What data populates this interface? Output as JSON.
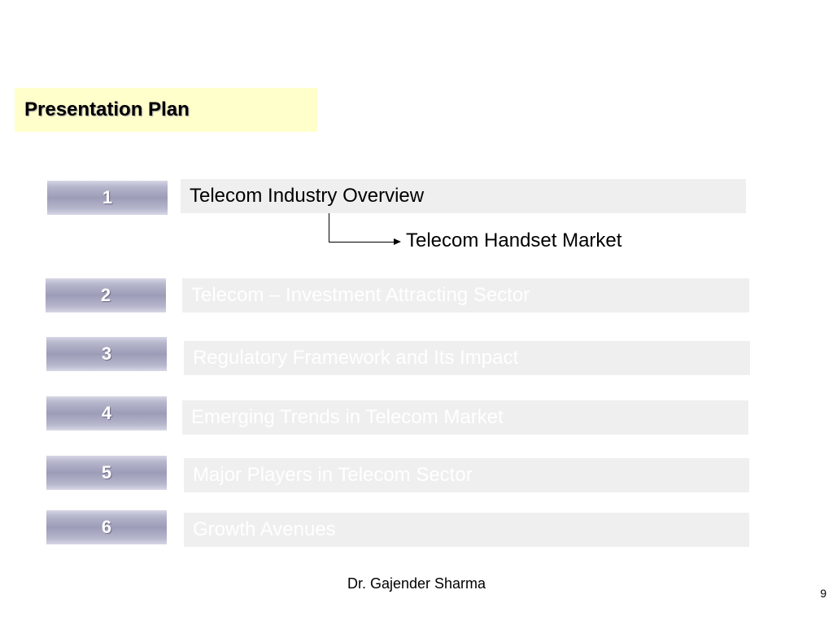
{
  "slide": {
    "title": "Presentation Plan",
    "items": [
      {
        "number": "1",
        "label": "Telecom Industry Overview",
        "active": true
      },
      {
        "number": "2",
        "label": "Telecom – Investment Attracting Sector",
        "active": false
      },
      {
        "number": "3",
        "label": "Regulatory Framework and Its Impact",
        "active": false
      },
      {
        "number": "4",
        "label": "Emerging Trends in Telecom Market",
        "active": false
      },
      {
        "number": "5",
        "label": "Major Players in Telecom Sector",
        "active": false
      },
      {
        "number": "6",
        "label": "Growth Avenues",
        "active": false
      }
    ],
    "subitem": "Telecom Handset Market",
    "author": "Dr. Gajender Sharma",
    "page_number": "9"
  }
}
